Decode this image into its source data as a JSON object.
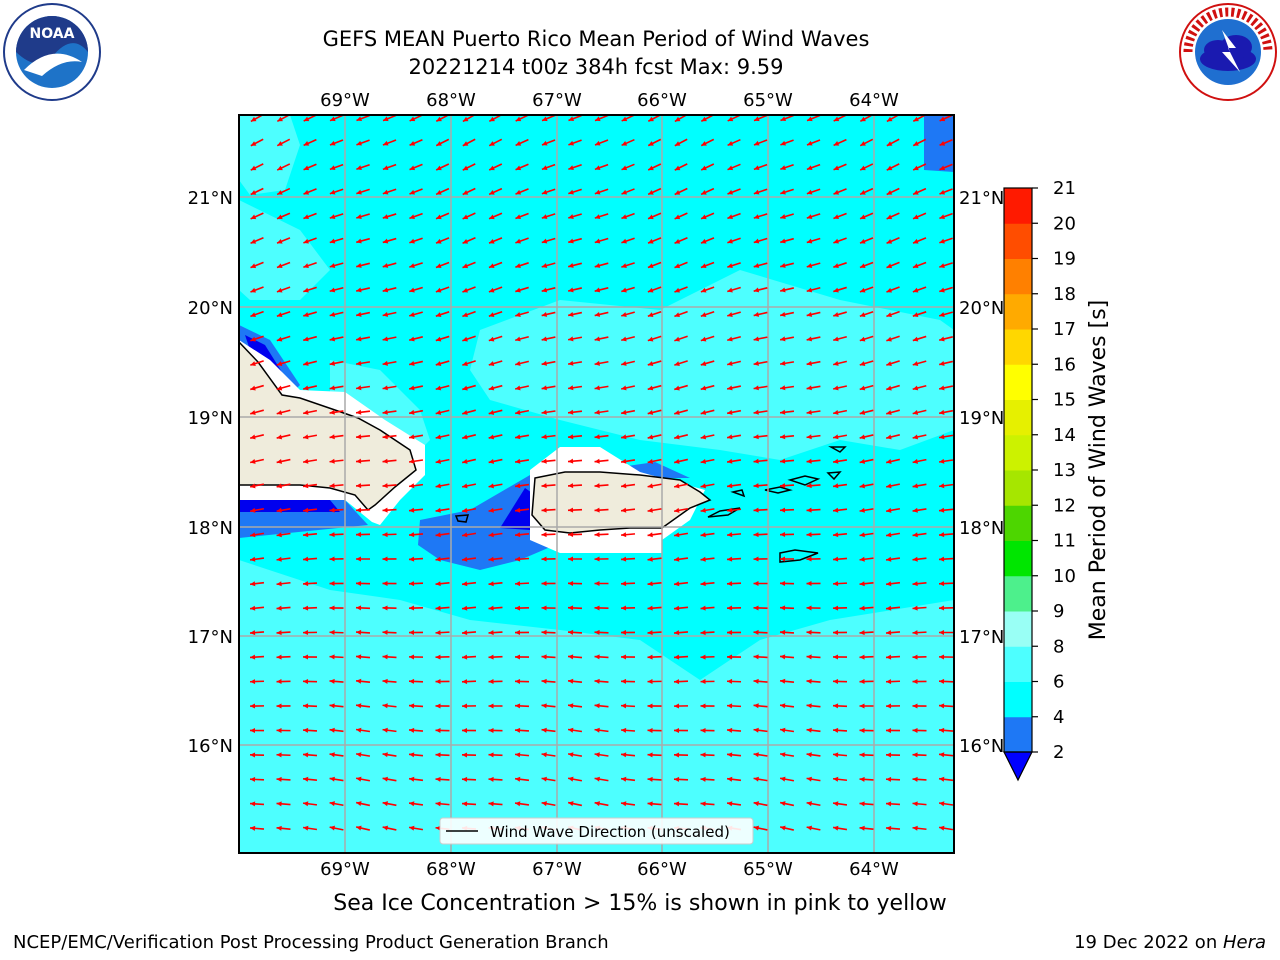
{
  "header": {
    "title_line1": "GEFS MEAN Puerto Rico Mean Period of Wind Waves",
    "title_line2": "20221214 t00z 384h fcst   Max: 9.59"
  },
  "logos": {
    "left": {
      "icon": "noaa-logo",
      "text": "NOAA"
    },
    "right": {
      "icon": "nws-logo",
      "text": "NATIONAL WEATHER SERVICE"
    }
  },
  "map": {
    "lon_labels": [
      "69°W",
      "68°W",
      "67°W",
      "66°W",
      "65°W",
      "64°W"
    ],
    "lat_labels": [
      "21°N",
      "20°N",
      "19°N",
      "18°N",
      "17°N",
      "16°N"
    ],
    "legend_label": "Wind Wave Direction (unscaled)",
    "arrow_color": "#ff0000",
    "land_color": "#efecdc"
  },
  "colorbar": {
    "label": "Mean Period of Wind Waves [s]",
    "ticks": [
      "2",
      "4",
      "6",
      "8",
      "9",
      "10",
      "11",
      "12",
      "13",
      "14",
      "15",
      "16",
      "17",
      "18",
      "19",
      "20",
      "21"
    ],
    "colors": [
      "#0a0af0",
      "#1e78f5",
      "#00ffff",
      "#4dffff",
      "#99fff5",
      "#4df08c",
      "#00e600",
      "#4dd600",
      "#a6e600",
      "#ccf200",
      "#e6f000",
      "#ffff00",
      "#ffd700",
      "#ffaa00",
      "#ff8000",
      "#ff4d00",
      "#ff1a00",
      "#ff0000"
    ],
    "under_color": "#0000ff"
  },
  "footer": {
    "note": "Sea Ice Concentration > 15% is shown in pink to yellow",
    "left": "NCEP/EMC/Verification Post Processing Product Generation Branch",
    "right_prefix": "19 Dec 2022 on ",
    "right_host": "Hera"
  }
}
